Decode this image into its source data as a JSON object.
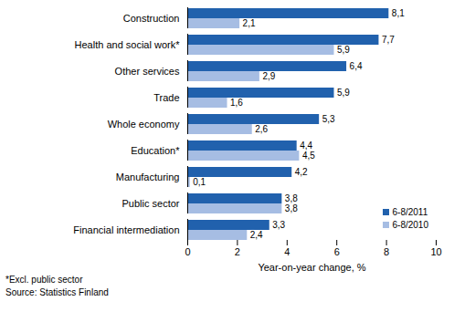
{
  "chart_data": {
    "type": "bar",
    "orientation": "horizontal",
    "categories": [
      "Construction",
      "Health and social work*",
      "Other services",
      "Trade",
      "Whole economy",
      "Education*",
      "Manufacturing",
      "Public sector",
      "Financial intermediation"
    ],
    "series": [
      {
        "name": "6-8/2011",
        "color": "#2161ad",
        "values": [
          8.1,
          7.7,
          6.4,
          5.9,
          5.3,
          4.4,
          4.2,
          3.8,
          3.3
        ],
        "value_labels": [
          "8,1",
          "7,7",
          "6,4",
          "5,9",
          "5,3",
          "4,4",
          "4,2",
          "3,8",
          "3,3"
        ]
      },
      {
        "name": "6-8/2010",
        "color": "#a6bde3",
        "values": [
          2.1,
          5.9,
          2.9,
          1.6,
          2.6,
          4.5,
          0.1,
          3.8,
          2.4
        ],
        "value_labels": [
          "2,1",
          "5,9",
          "2,9",
          "1,6",
          "2,6",
          "4,5",
          "0,1",
          "3,8",
          "2,4"
        ]
      }
    ],
    "x_label": "Year-on-year change, %",
    "xlim": [
      0,
      10
    ],
    "xticks": [
      0,
      2,
      4,
      6,
      8,
      10
    ],
    "data_labels": true,
    "grid": false,
    "legend": "lower right",
    "annotations": [
      "*Excl. public sector",
      "Source: Statistics Finland"
    ]
  }
}
